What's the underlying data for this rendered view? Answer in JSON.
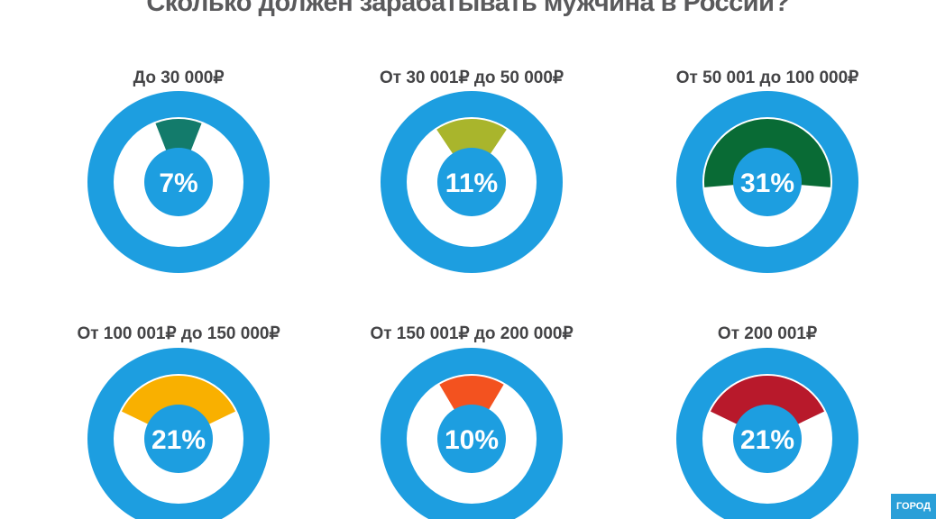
{
  "title": "Сколько должен зарабатывать мужчина в России?",
  "logo_text": "ГОРОД",
  "colors": {
    "ring": "#1d9ee0",
    "inner": "#ffffff",
    "title": "#5a5a5c",
    "label": "#444446"
  },
  "chart_data": {
    "type": "pie",
    "title": "Сколько должен зарабатывать мужчина в России?",
    "unit": "%",
    "categories": [
      "До 30 000₽",
      "От 30 001₽ до 50 000₽",
      "От 50 001 до 100 000₽",
      "От 100 001₽ до 150 000₽",
      "От 150 001₽ до 200 000₽",
      "От 200 001₽"
    ],
    "values": [
      7,
      11,
      31,
      21,
      10,
      21
    ],
    "value_labels": [
      "7%",
      "11%",
      "31%",
      "21%",
      "10%",
      "21%"
    ],
    "colors": [
      "#137b6b",
      "#a9b52c",
      "#096b35",
      "#f9b000",
      "#f3521f",
      "#b8192b"
    ]
  }
}
